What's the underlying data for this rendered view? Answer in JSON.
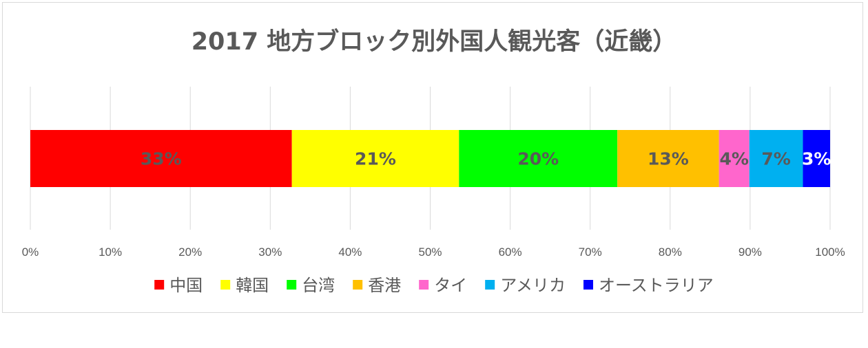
{
  "chart_data": {
    "type": "bar",
    "orientation": "horizontal",
    "stacked": "percent",
    "title": "2017 地方ブロック別外国人観光客（近畿）",
    "xlabel": "",
    "ylabel": "",
    "xlim": [
      0,
      100
    ],
    "x_ticks": [
      "0%",
      "10%",
      "20%",
      "30%",
      "40%",
      "50%",
      "60%",
      "70%",
      "80%",
      "90%",
      "100%"
    ],
    "grid": "vertical",
    "legend_position": "bottom",
    "series": [
      {
        "name": "中国",
        "value": 32.7,
        "label": "33%",
        "color": "#ff0000",
        "label_color": "#595959"
      },
      {
        "name": "韓国",
        "value": 20.9,
        "label": "21%",
        "color": "#ffff00",
        "label_color": "#595959"
      },
      {
        "name": "台湾",
        "value": 19.8,
        "label": "20%",
        "color": "#00ff00",
        "label_color": "#595959"
      },
      {
        "name": "香港",
        "value": 12.7,
        "label": "13%",
        "color": "#ffc000",
        "label_color": "#595959"
      },
      {
        "name": "タイ",
        "value": 3.8,
        "label": "4%",
        "color": "#ff66cc",
        "label_color": "#595959"
      },
      {
        "name": "アメリカ",
        "value": 6.7,
        "label": "7%",
        "color": "#00b0f0",
        "label_color": "#595959"
      },
      {
        "name": "オーストラリア",
        "value": 3.4,
        "label": "3%",
        "color": "#0000ff",
        "label_color": "#ffffff"
      }
    ]
  }
}
